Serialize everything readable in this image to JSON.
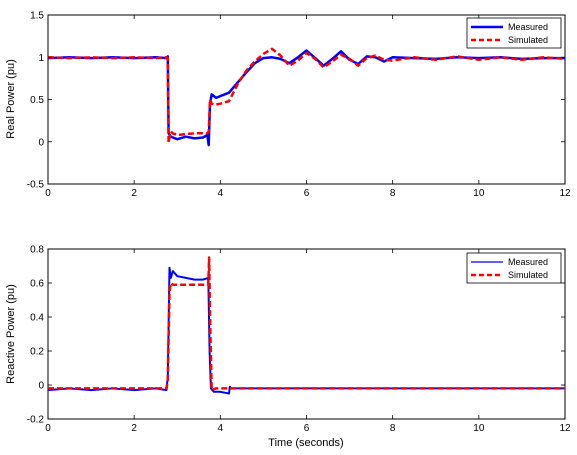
{
  "chart_data": [
    {
      "type": "line",
      "xlabel": "",
      "ylabel": "Real Power (pu)",
      "xlim": [
        0,
        12
      ],
      "ylim": [
        -0.5,
        1.5
      ],
      "xticks": [
        "0",
        "2",
        "4",
        "6",
        "8",
        "10",
        "12"
      ],
      "yticks": [
        "-0.5",
        "0",
        "0.5",
        "1",
        "1.5"
      ],
      "grid": false,
      "legend_position": "top-right",
      "series": [
        {
          "name": "Measured",
          "color": "#0000ff",
          "style": "solid",
          "x": [
            0,
            0.5,
            1,
            1.5,
            2,
            2.5,
            2.75,
            2.78,
            2.8,
            2.85,
            2.9,
            3.0,
            3.2,
            3.4,
            3.6,
            3.7,
            3.73,
            3.76,
            3.8,
            3.9,
            4.0,
            4.2,
            4.4,
            4.6,
            4.8,
            5.0,
            5.2,
            5.4,
            5.6,
            5.8,
            6.0,
            6.2,
            6.4,
            6.6,
            6.8,
            7.0,
            7.2,
            7.4,
            7.6,
            7.8,
            8.0,
            8.5,
            9.0,
            9.5,
            10,
            10.5,
            11,
            11.5,
            12
          ],
          "y": [
            0.99,
            1.0,
            0.99,
            1.0,
            0.99,
            1.0,
            0.99,
            1.01,
            0.1,
            0.06,
            0.05,
            0.03,
            0.06,
            0.04,
            0.05,
            0.08,
            -0.04,
            0.45,
            0.56,
            0.52,
            0.54,
            0.58,
            0.7,
            0.82,
            0.93,
            0.99,
            1.0,
            0.98,
            0.93,
            1.0,
            1.08,
            0.99,
            0.9,
            0.98,
            1.07,
            0.97,
            0.92,
            1.01,
            1.0,
            0.95,
            1.0,
            0.99,
            0.98,
            1.0,
            0.99,
            1.0,
            0.98,
            0.99,
            0.99
          ]
        },
        {
          "name": "Simulated",
          "color": "#ff0000",
          "style": "dashed",
          "x": [
            0,
            0.5,
            1,
            1.5,
            2,
            2.5,
            2.75,
            2.78,
            2.8,
            2.85,
            2.9,
            3.0,
            3.2,
            3.4,
            3.6,
            3.7,
            3.73,
            3.76,
            3.8,
            3.9,
            4.0,
            4.2,
            4.4,
            4.6,
            4.8,
            5.0,
            5.2,
            5.4,
            5.6,
            5.8,
            6.0,
            6.2,
            6.4,
            6.6,
            6.8,
            7.0,
            7.2,
            7.4,
            7.6,
            7.8,
            8.0,
            8.5,
            9.0,
            9.5,
            10,
            10.5,
            11,
            11.5,
            12
          ],
          "y": [
            1.0,
            0.99,
            1.0,
            0.99,
            1.0,
            0.99,
            1.0,
            0.99,
            -0.01,
            0.12,
            0.1,
            0.08,
            0.09,
            0.1,
            0.1,
            0.1,
            0.12,
            0.5,
            0.45,
            0.44,
            0.45,
            0.48,
            0.68,
            0.84,
            0.95,
            1.04,
            1.1,
            1.02,
            0.9,
            0.96,
            1.05,
            0.98,
            0.88,
            0.95,
            1.03,
            0.98,
            0.9,
            0.99,
            1.02,
            0.97,
            0.96,
            1.0,
            0.97,
            1.01,
            0.97,
            1.0,
            0.97,
            1.0,
            0.98
          ]
        }
      ]
    },
    {
      "type": "line",
      "xlabel": "Time (seconds)",
      "ylabel": "Reactive Power (pu)",
      "xlim": [
        0,
        12
      ],
      "ylim": [
        -0.2,
        0.8
      ],
      "xticks": [
        "0",
        "2",
        "4",
        "6",
        "8",
        "10",
        "12"
      ],
      "yticks": [
        "-0.2",
        "0",
        "0.2",
        "0.4",
        "0.6",
        "0.8"
      ],
      "grid": false,
      "legend_position": "top-right",
      "series": [
        {
          "name": "Measured",
          "color": "#0000ff",
          "style": "solid",
          "x": [
            0,
            0.5,
            1,
            1.5,
            2,
            2.5,
            2.75,
            2.78,
            2.82,
            2.85,
            2.9,
            3.0,
            3.2,
            3.4,
            3.6,
            3.72,
            3.75,
            3.78,
            3.85,
            4.0,
            4.2,
            4.22,
            4.25,
            5,
            6,
            7,
            8,
            9,
            10,
            11,
            12
          ],
          "y": [
            -0.03,
            -0.02,
            -0.03,
            -0.02,
            -0.03,
            -0.02,
            -0.03,
            0.05,
            0.69,
            0.63,
            0.67,
            0.64,
            0.63,
            0.62,
            0.62,
            0.63,
            0.2,
            -0.02,
            -0.04,
            -0.04,
            -0.05,
            -0.01,
            -0.02,
            -0.02,
            -0.02,
            -0.02,
            -0.02,
            -0.02,
            -0.02,
            -0.02,
            -0.02
          ]
        },
        {
          "name": "Simulated",
          "color": "#ff0000",
          "style": "dashed",
          "x": [
            0,
            0.5,
            1,
            1.5,
            2,
            2.5,
            2.75,
            2.78,
            2.82,
            2.85,
            2.9,
            3.0,
            3.2,
            3.4,
            3.6,
            3.72,
            3.74,
            3.77,
            3.8,
            3.9,
            4.0,
            5,
            6,
            7,
            8,
            9,
            10,
            11,
            12
          ],
          "y": [
            -0.02,
            -0.02,
            -0.02,
            -0.02,
            -0.02,
            -0.02,
            -0.02,
            0.03,
            0.55,
            0.6,
            0.59,
            0.59,
            0.59,
            0.59,
            0.59,
            0.59,
            0.75,
            0.3,
            -0.03,
            -0.02,
            -0.02,
            -0.02,
            -0.02,
            -0.02,
            -0.02,
            -0.02,
            -0.02,
            -0.02,
            -0.02
          ]
        }
      ]
    }
  ]
}
